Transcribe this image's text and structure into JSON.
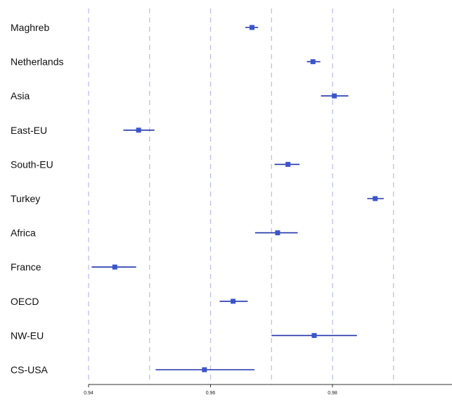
{
  "chart_data": {
    "type": "forest",
    "categories": [
      "Maghreb",
      "Netherlands",
      "Asia",
      "East-EU",
      "South-EU",
      "Turkey",
      "Africa",
      "France",
      "OECD",
      "NW-EU",
      "CS-USA"
    ],
    "estimates": [
      0.9668,
      0.9768,
      0.9803,
      0.9482,
      0.9727,
      0.987,
      0.971,
      0.9443,
      0.9637,
      0.977,
      0.959
    ],
    "lower": [
      0.9657,
      0.9758,
      0.9781,
      0.9457,
      0.9705,
      0.9857,
      0.9673,
      0.9405,
      0.9615,
      0.97,
      0.951
    ],
    "upper": [
      0.9678,
      0.978,
      0.9826,
      0.9508,
      0.9746,
      0.9884,
      0.9743,
      0.9478,
      0.9661,
      0.984,
      0.9672
    ],
    "xlim": [
      0.94,
      1.0
    ],
    "xticks": [
      0.94,
      0.96,
      0.98
    ],
    "xtick_labels": [
      "0.94",
      "0.96",
      "0.98"
    ],
    "gridlines_x": [
      0.94,
      0.95,
      0.96,
      0.97,
      0.98,
      0.99
    ],
    "grid": true,
    "colors": {
      "marker": "#3a55cc",
      "interval": "#2233aa",
      "gridline": "#b9b9f2",
      "axis": "#333333"
    }
  }
}
